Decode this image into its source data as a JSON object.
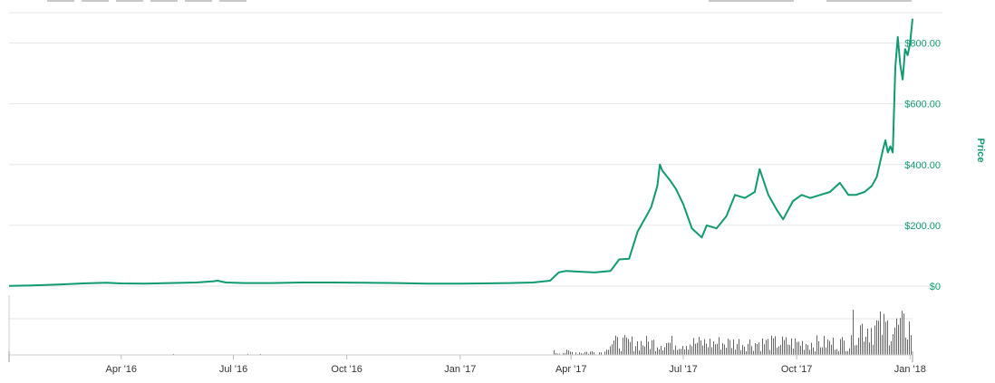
{
  "chart_data": {
    "type": "line",
    "title": "",
    "xlabel": "",
    "ylabel": "Price",
    "ylim": [
      0,
      900
    ],
    "yticks": [
      {
        "value": 0,
        "label": "$0"
      },
      {
        "value": 200,
        "label": "$200.00"
      },
      {
        "value": 400,
        "label": "$400.00"
      },
      {
        "value": 600,
        "label": "$600.00"
      },
      {
        "value": 800,
        "label": "$800.00"
      }
    ],
    "xlim": [
      "2016-01-01",
      "2018-01-03"
    ],
    "xticks": [
      {
        "date": "2016-04-01",
        "label": "Apr '16"
      },
      {
        "date": "2016-07-01",
        "label": "Jul '16"
      },
      {
        "date": "2016-10-01",
        "label": "Oct '16"
      },
      {
        "date": "2017-01-01",
        "label": "Jan '17"
      },
      {
        "date": "2017-04-01",
        "label": "Apr '17"
      },
      {
        "date": "2017-07-01",
        "label": "Jul '17"
      },
      {
        "date": "2017-10-01",
        "label": "Oct '17"
      },
      {
        "date": "2018-01-01",
        "label": "Jan '18"
      }
    ],
    "grid": true,
    "colors": {
      "price_line": "#119a72",
      "axis_text": "#119a72",
      "volume_bar": "#666666",
      "grid": "#e6e6e6"
    },
    "series": [
      {
        "x": [
          "2016-01-01",
          "2016-01-20",
          "2016-02-10",
          "2016-03-01",
          "2016-03-20",
          "2016-04-01",
          "2016-04-20",
          "2016-05-10",
          "2016-06-01",
          "2016-06-15",
          "2016-06-18",
          "2016-06-25",
          "2016-07-10",
          "2016-08-01",
          "2016-08-25",
          "2016-09-20",
          "2016-10-15",
          "2016-11-10",
          "2016-12-05",
          "2016-12-31",
          "2017-01-20",
          "2017-02-10",
          "2017-03-01",
          "2017-03-15",
          "2017-03-22",
          "2017-03-28",
          "2017-04-05",
          "2017-04-20",
          "2017-05-03",
          "2017-05-10",
          "2017-05-18",
          "2017-05-25",
          "2017-06-01",
          "2017-06-05",
          "2017-06-10",
          "2017-06-12",
          "2017-06-14",
          "2017-06-20",
          "2017-06-25",
          "2017-07-01",
          "2017-07-08",
          "2017-07-16",
          "2017-07-20",
          "2017-07-28",
          "2017-08-05",
          "2017-08-12",
          "2017-08-20",
          "2017-08-28",
          "2017-09-01",
          "2017-09-08",
          "2017-09-15",
          "2017-09-20",
          "2017-09-28",
          "2017-10-05",
          "2017-10-12",
          "2017-10-20",
          "2017-10-28",
          "2017-11-05",
          "2017-11-12",
          "2017-11-18",
          "2017-11-25",
          "2017-12-01",
          "2017-12-05",
          "2017-12-10",
          "2017-12-12",
          "2017-12-14",
          "2017-12-16",
          "2017-12-18",
          "2017-12-20",
          "2017-12-22",
          "2017-12-24",
          "2017-12-26",
          "2017-12-28",
          "2017-12-30",
          "2018-01-01",
          "2018-01-03"
        ],
        "values": [
          1,
          2,
          5,
          9,
          11,
          9,
          8,
          10,
          12,
          16,
          18,
          12,
          10,
          10,
          12,
          12,
          11,
          10,
          8,
          8,
          9,
          10,
          12,
          18,
          45,
          50,
          48,
          45,
          50,
          88,
          90,
          180,
          230,
          260,
          330,
          400,
          380,
          350,
          320,
          270,
          190,
          160,
          200,
          190,
          230,
          300,
          290,
          310,
          385,
          300,
          250,
          220,
          280,
          300,
          290,
          300,
          310,
          340,
          300,
          300,
          310,
          330,
          360,
          450,
          480,
          440,
          460,
          440,
          720,
          820,
          730,
          680,
          780,
          760,
          800,
          880
        ]
      }
    ]
  }
}
